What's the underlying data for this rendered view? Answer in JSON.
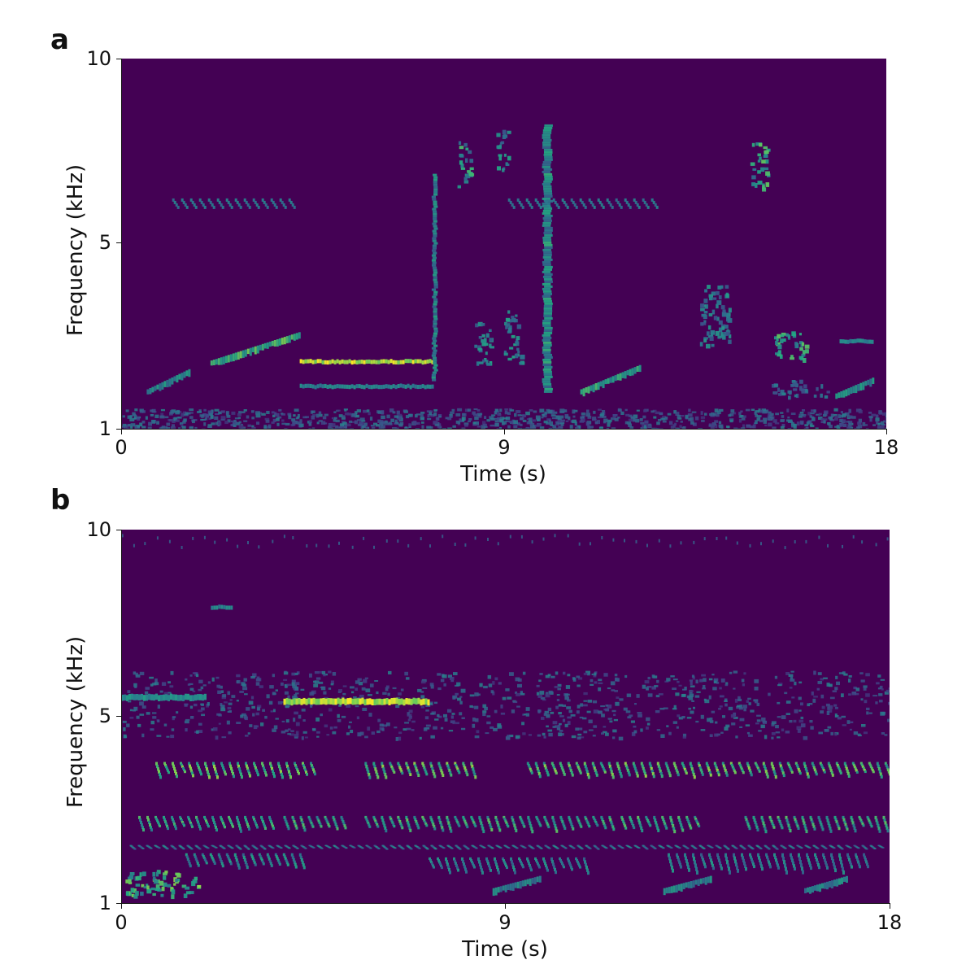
{
  "chart_data": [
    {
      "type": "heatmap",
      "panel_label": "a",
      "title": "",
      "xlabel": "Time (s)",
      "ylabel": "Frequency (kHz)",
      "xlim": [
        0,
        18
      ],
      "ylim": [
        1,
        10
      ],
      "xticks": [
        0,
        9,
        18
      ],
      "yticks": [
        1,
        5,
        10
      ],
      "x_tick_labels": [
        "0",
        "9",
        "18"
      ],
      "y_tick_labels": [
        "1",
        "5",
        "10"
      ],
      "colormap": "viridis",
      "background_color": "#440154",
      "events": [
        {
          "t0": 1.2,
          "t1": 4.0,
          "f0": 6.3,
          "f1": 6.6,
          "i": 0.35,
          "kind": "chirps"
        },
        {
          "t0": 9.1,
          "t1": 12.6,
          "f0": 6.3,
          "f1": 6.6,
          "i": 0.35,
          "kind": "chirps"
        },
        {
          "t0": 4.2,
          "t1": 7.3,
          "f0": 2.6,
          "f1": 2.7,
          "i": 1.0,
          "kind": "tone"
        },
        {
          "t0": 4.2,
          "t1": 7.3,
          "f0": 2.0,
          "f1": 2.1,
          "i": 0.5,
          "kind": "tone"
        },
        {
          "t0": 2.1,
          "t1": 4.2,
          "f0": 2.6,
          "f1": 3.3,
          "i": 0.8,
          "kind": "sweep"
        },
        {
          "t0": 0.6,
          "t1": 1.6,
          "f0": 1.9,
          "f1": 2.4,
          "i": 0.6,
          "kind": "sweep"
        },
        {
          "t0": 7.3,
          "t1": 7.4,
          "f0": 2.2,
          "f1": 7.2,
          "i": 0.6,
          "kind": "vertical"
        },
        {
          "t0": 7.9,
          "t1": 8.2,
          "f0": 6.9,
          "f1": 8.1,
          "i": 0.7,
          "kind": "block"
        },
        {
          "t0": 8.8,
          "t1": 9.1,
          "f0": 7.3,
          "f1": 8.3,
          "i": 0.6,
          "kind": "block"
        },
        {
          "t0": 9.9,
          "t1": 10.1,
          "f0": 1.9,
          "f1": 8.4,
          "i": 0.65,
          "kind": "vertical"
        },
        {
          "t0": 14.8,
          "t1": 15.2,
          "f0": 6.8,
          "f1": 8.0,
          "i": 0.75,
          "kind": "block"
        },
        {
          "t0": 8.3,
          "t1": 8.7,
          "f0": 2.6,
          "f1": 3.6,
          "i": 0.6,
          "kind": "block"
        },
        {
          "t0": 9.0,
          "t1": 9.4,
          "f0": 2.6,
          "f1": 3.9,
          "i": 0.6,
          "kind": "block"
        },
        {
          "t0": 10.8,
          "t1": 12.2,
          "f0": 1.9,
          "f1": 2.5,
          "i": 0.7,
          "kind": "sweep"
        },
        {
          "t0": 13.6,
          "t1": 14.3,
          "f0": 3.0,
          "f1": 4.5,
          "i": 0.55,
          "kind": "block"
        },
        {
          "t0": 15.3,
          "t1": 16.1,
          "f0": 2.7,
          "f1": 3.4,
          "i": 0.75,
          "kind": "block"
        },
        {
          "t0": 15.3,
          "t1": 16.6,
          "f0": 1.8,
          "f1": 2.2,
          "i": 0.45,
          "kind": "block"
        },
        {
          "t0": 16.8,
          "t1": 17.7,
          "f0": 1.8,
          "f1": 2.2,
          "i": 0.6,
          "kind": "sweep"
        },
        {
          "t0": 16.9,
          "t1": 17.7,
          "f0": 3.1,
          "f1": 3.2,
          "i": 0.5,
          "kind": "tone"
        },
        {
          "t0": 0.0,
          "t1": 18.0,
          "f0": 1.0,
          "f1": 1.5,
          "i": 0.3,
          "kind": "noise"
        }
      ]
    },
    {
      "type": "heatmap",
      "panel_label": "b",
      "title": "",
      "xlabel": "Time (s)",
      "ylabel": "Frequency (kHz)",
      "xlim": [
        0,
        18
      ],
      "ylim": [
        1,
        10
      ],
      "xticks": [
        0,
        9,
        18
      ],
      "yticks": [
        1,
        5,
        10
      ],
      "x_tick_labels": [
        "0",
        "9",
        "18"
      ],
      "y_tick_labels": [
        "1",
        "5",
        "10"
      ],
      "colormap": "viridis",
      "background_color": "#440154",
      "events": [
        {
          "t0": 0.0,
          "t1": 18.0,
          "f0": 5.0,
          "f1": 6.6,
          "i": 0.3,
          "kind": "noise"
        },
        {
          "t0": 3.8,
          "t1": 7.2,
          "f0": 5.8,
          "f1": 5.95,
          "i": 1.0,
          "kind": "tone"
        },
        {
          "t0": 0.0,
          "t1": 2.0,
          "f0": 5.9,
          "f1": 6.05,
          "i": 0.55,
          "kind": "tone"
        },
        {
          "t0": 2.1,
          "t1": 2.6,
          "f0": 8.1,
          "f1": 8.2,
          "i": 0.5,
          "kind": "tone"
        },
        {
          "t0": 0.8,
          "t1": 4.6,
          "f0": 4.0,
          "f1": 4.4,
          "i": 0.85,
          "kind": "pulses"
        },
        {
          "t0": 5.7,
          "t1": 8.3,
          "f0": 4.0,
          "f1": 4.4,
          "i": 0.85,
          "kind": "pulses"
        },
        {
          "t0": 9.5,
          "t1": 18.0,
          "f0": 4.0,
          "f1": 4.4,
          "i": 0.85,
          "kind": "pulses"
        },
        {
          "t0": 0.4,
          "t1": 3.5,
          "f0": 2.7,
          "f1": 3.1,
          "i": 0.75,
          "kind": "pulses"
        },
        {
          "t0": 3.8,
          "t1": 5.3,
          "f0": 2.7,
          "f1": 3.1,
          "i": 0.75,
          "kind": "pulses"
        },
        {
          "t0": 5.7,
          "t1": 11.5,
          "f0": 2.7,
          "f1": 3.1,
          "i": 0.75,
          "kind": "pulses"
        },
        {
          "t0": 11.7,
          "t1": 13.6,
          "f0": 2.7,
          "f1": 3.1,
          "i": 0.75,
          "kind": "pulses"
        },
        {
          "t0": 14.6,
          "t1": 17.9,
          "f0": 2.7,
          "f1": 3.1,
          "i": 0.75,
          "kind": "pulses"
        },
        {
          "t0": 0.2,
          "t1": 17.8,
          "f0": 2.3,
          "f1": 2.4,
          "i": 0.5,
          "kind": "pulses"
        },
        {
          "t0": 1.5,
          "t1": 4.3,
          "f0": 1.8,
          "f1": 2.2,
          "i": 0.6,
          "kind": "pulses"
        },
        {
          "t0": 7.2,
          "t1": 11.0,
          "f0": 1.7,
          "f1": 2.1,
          "i": 0.55,
          "kind": "pulses"
        },
        {
          "t0": 12.8,
          "t1": 17.5,
          "f0": 1.7,
          "f1": 2.2,
          "i": 0.55,
          "kind": "pulses"
        },
        {
          "t0": 0.1,
          "t1": 1.8,
          "f0": 1.2,
          "f1": 1.8,
          "i": 0.85,
          "kind": "block"
        },
        {
          "t0": 8.7,
          "t1": 9.8,
          "f0": 1.3,
          "f1": 1.6,
          "i": 0.55,
          "kind": "sweep"
        },
        {
          "t0": 12.7,
          "t1": 13.8,
          "f0": 1.3,
          "f1": 1.6,
          "i": 0.55,
          "kind": "sweep"
        },
        {
          "t0": 16.0,
          "t1": 17.0,
          "f0": 1.3,
          "f1": 1.6,
          "i": 0.55,
          "kind": "sweep"
        },
        {
          "t0": 0.0,
          "t1": 18.0,
          "f0": 9.6,
          "f1": 9.9,
          "i": 0.3,
          "kind": "dots"
        }
      ]
    }
  ]
}
